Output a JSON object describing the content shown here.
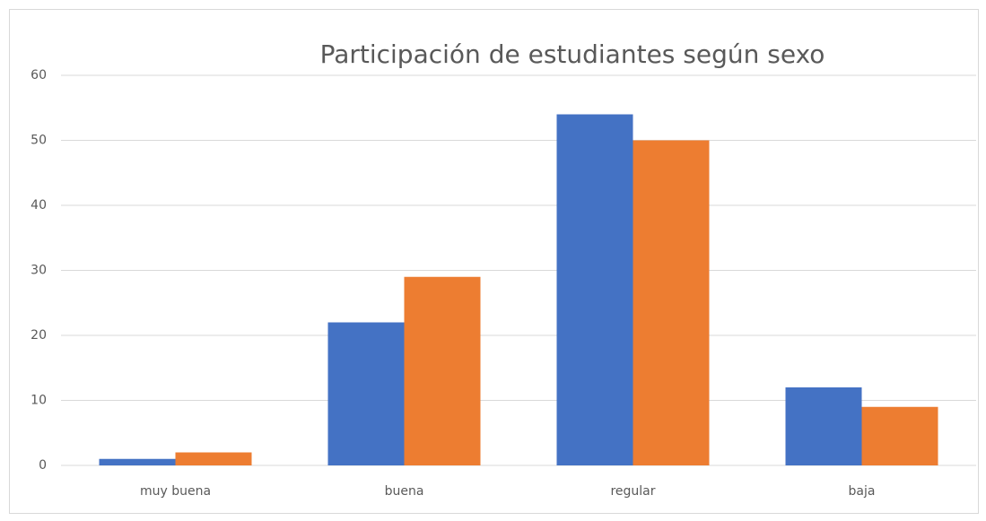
{
  "chart_data": {
    "type": "bar",
    "title": "Participación de estudiantes según sexo",
    "categories": [
      "muy buena",
      "buena",
      "regular",
      "baja"
    ],
    "series": [
      {
        "color": "#4472c4",
        "values": [
          1,
          22,
          54,
          12
        ]
      },
      {
        "color": "#ed7d31",
        "values": [
          2,
          29,
          50,
          9
        ]
      }
    ],
    "ylim": [
      0,
      60
    ],
    "yticks": [
      0,
      10,
      20,
      30,
      40,
      50,
      60
    ],
    "grid": true
  }
}
